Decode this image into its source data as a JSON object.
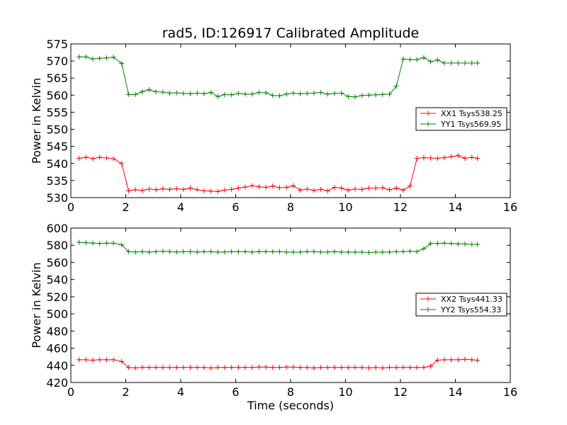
{
  "figure": {
    "title": "rad5, ID:126917 Calibrated Amplitude",
    "xlabel": "Time (seconds)"
  },
  "colors": {
    "red": "#ff0000",
    "green": "#008000"
  },
  "chart_data": [
    {
      "type": "line",
      "xlabel": "",
      "ylabel": "Power in Kelvin",
      "xlim": [
        0,
        16
      ],
      "ylim": [
        530,
        575
      ],
      "xticks": [
        0,
        2,
        4,
        6,
        8,
        10,
        12,
        14,
        16
      ],
      "yticks": [
        530,
        535,
        540,
        545,
        550,
        555,
        560,
        565,
        570,
        575
      ],
      "grid": false,
      "legend_placement": "center-right",
      "x": [
        0.3,
        0.55,
        0.8,
        1.05,
        1.3,
        1.55,
        1.85,
        2.1,
        2.35,
        2.6,
        2.85,
        3.1,
        3.35,
        3.6,
        3.85,
        4.1,
        4.35,
        4.6,
        4.85,
        5.1,
        5.35,
        5.6,
        5.85,
        6.1,
        6.35,
        6.6,
        6.85,
        7.1,
        7.35,
        7.6,
        7.85,
        8.1,
        8.35,
        8.6,
        8.85,
        9.1,
        9.35,
        9.6,
        9.85,
        10.1,
        10.35,
        10.6,
        10.85,
        11.1,
        11.35,
        11.6,
        11.85,
        12.1,
        12.35,
        12.6,
        12.85,
        13.1,
        13.35,
        13.6,
        13.85,
        14.1,
        14.35,
        14.6,
        14.8
      ],
      "series": [
        {
          "name": "XX1 Tsys538.25",
          "color": "#ff0000",
          "values": [
            541.5,
            541.8,
            541.4,
            541.8,
            541.6,
            541.4,
            540.0,
            532.0,
            532.3,
            532.1,
            532.5,
            532.3,
            532.6,
            532.4,
            532.6,
            532.4,
            532.8,
            532.3,
            532.0,
            531.9,
            531.8,
            532.2,
            532.4,
            532.8,
            533.1,
            533.5,
            533.2,
            533.0,
            533.4,
            532.9,
            533.0,
            533.5,
            532.2,
            532.5,
            532.1,
            532.4,
            532.0,
            533.0,
            532.8,
            532.2,
            532.5,
            532.4,
            532.8,
            532.8,
            532.9,
            532.3,
            532.8,
            532.2,
            533.4,
            541.5,
            541.7,
            541.6,
            541.5,
            541.7,
            542.0,
            542.3,
            541.5,
            541.8,
            541.5
          ],
          "values_trimmed": true
        },
        {
          "name": "YY1 Tsys569.95",
          "color": "#008000",
          "values": [
            571.2,
            571.2,
            570.6,
            570.8,
            570.9,
            571.1,
            569.3,
            560.2,
            560.2,
            561.0,
            561.6,
            561.0,
            560.9,
            560.6,
            560.7,
            560.5,
            560.4,
            560.6,
            560.4,
            560.8,
            559.6,
            560.2,
            560.1,
            560.5,
            560.3,
            560.3,
            560.8,
            560.7,
            559.9,
            559.8,
            560.3,
            560.6,
            560.4,
            560.5,
            560.6,
            560.8,
            560.3,
            560.5,
            560.6,
            559.6,
            559.5,
            559.9,
            560.0,
            560.1,
            560.2,
            560.3,
            562.6,
            570.6,
            570.4,
            570.4,
            571.0,
            569.8,
            570.3,
            569.4,
            569.4,
            569.4,
            569.4,
            569.4,
            569.4
          ],
          "values_trimmed": true
        }
      ]
    },
    {
      "type": "line",
      "xlabel": "Time (seconds)",
      "ylabel": "Power in Kelvin",
      "xlim": [
        0,
        16
      ],
      "ylim": [
        420,
        600
      ],
      "xticks": [
        0,
        2,
        4,
        6,
        8,
        10,
        12,
        14,
        16
      ],
      "yticks": [
        420,
        440,
        460,
        480,
        500,
        520,
        540,
        560,
        580,
        600
      ],
      "grid": false,
      "legend_placement": "center-right",
      "x": [
        0.3,
        0.55,
        0.8,
        1.05,
        1.3,
        1.55,
        1.85,
        2.1,
        2.35,
        2.6,
        2.85,
        3.1,
        3.35,
        3.6,
        3.85,
        4.1,
        4.35,
        4.6,
        4.85,
        5.1,
        5.35,
        5.6,
        5.85,
        6.1,
        6.35,
        6.6,
        6.85,
        7.1,
        7.35,
        7.6,
        7.85,
        8.1,
        8.35,
        8.6,
        8.85,
        9.1,
        9.35,
        9.6,
        9.85,
        10.1,
        10.35,
        10.6,
        10.85,
        11.1,
        11.35,
        11.6,
        11.85,
        12.1,
        12.35,
        12.6,
        12.85,
        13.1,
        13.35,
        13.6,
        13.85,
        14.1,
        14.35,
        14.6,
        14.8
      ],
      "series": [
        {
          "name": "XX2 Tsys441.33",
          "color": "#ff0000",
          "values": [
            446.5,
            446.5,
            446.0,
            446.5,
            446.5,
            446.5,
            444.5,
            437.5,
            437.0,
            437.5,
            437.5,
            437.5,
            437.5,
            437.5,
            437.5,
            437.5,
            437.5,
            437.5,
            437.5,
            437.0,
            437.5,
            437.5,
            437.5,
            437.5,
            437.5,
            437.5,
            438.0,
            438.0,
            437.5,
            437.5,
            438.0,
            438.0,
            437.5,
            437.5,
            437.0,
            437.5,
            437.5,
            437.5,
            437.5,
            437.5,
            437.5,
            437.5,
            437.0,
            437.5,
            437.0,
            437.5,
            437.5,
            437.5,
            437.5,
            437.5,
            437.5,
            439.0,
            446.0,
            446.5,
            446.5,
            446.5,
            447.0,
            446.5,
            446.0
          ],
          "values_trimmed": true
        },
        {
          "name": "YY2 Tsys554.33",
          "color": "#008000",
          "values": [
            583.5,
            583.0,
            582.5,
            582.0,
            582.5,
            582.5,
            580.5,
            572.5,
            572.0,
            572.5,
            572.0,
            572.5,
            573.0,
            572.5,
            572.0,
            572.5,
            572.5,
            572.0,
            572.5,
            572.5,
            572.0,
            572.0,
            572.5,
            572.5,
            572.5,
            572.0,
            572.5,
            572.5,
            572.5,
            572.5,
            572.0,
            572.0,
            572.0,
            572.5,
            572.5,
            572.0,
            572.0,
            572.5,
            572.0,
            572.0,
            572.0,
            572.0,
            571.5,
            572.0,
            572.0,
            572.0,
            572.5,
            572.5,
            573.0,
            572.5,
            576.0,
            582.0,
            582.0,
            582.5,
            582.0,
            581.5,
            581.5,
            581.0,
            581.0
          ],
          "values_trimmed": true
        }
      ]
    }
  ]
}
